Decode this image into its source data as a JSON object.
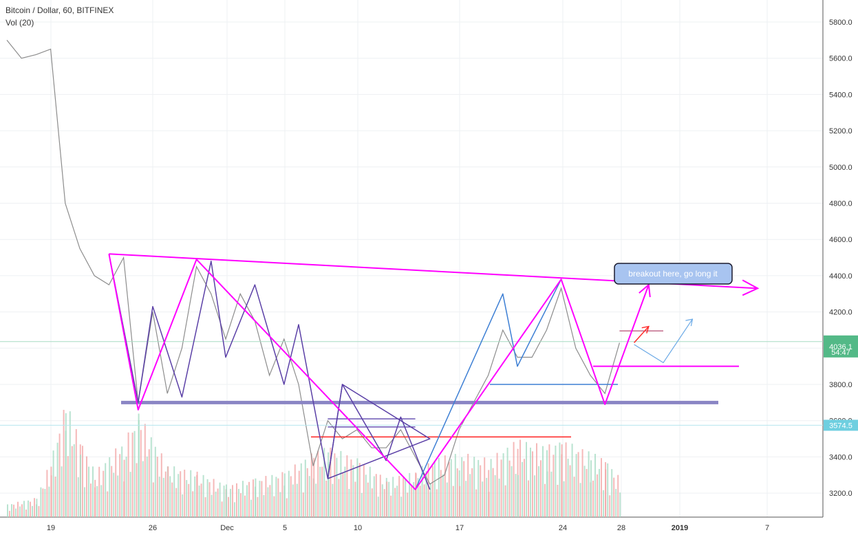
{
  "header": {
    "title": "Bitcoin / Dollar, 60, BITFINEX",
    "indicator": "Vol (20)"
  },
  "annotation": {
    "text": "breakout here, go long it"
  },
  "price_badges": {
    "current_price": "4036.1",
    "countdown": "54:47",
    "secondary_price": "3574.5"
  },
  "colors": {
    "pattern_pink": "#ff00ff",
    "support_purple": "#8a85c4",
    "pattern_blue": "#3d7fd4",
    "pattern_violet": "#5a3fa6",
    "resistance_red": "#ff1f1f",
    "arrow_red": "#ff2a2a",
    "arrow_lightblue": "#6aa9e6",
    "current_price_badge": "#53b987",
    "secondary_badge": "#6fcfe0",
    "annotation_fill": "#a8c4f0"
  },
  "chart_data": {
    "type": "line",
    "symbol": "BTCUSD",
    "exchange": "BITFINEX",
    "interval": "60",
    "x_tick_labels": [
      "19",
      "26",
      "Dec",
      "5",
      "10",
      "17",
      "24",
      "28",
      "2019",
      "7"
    ],
    "y_tick_labels": [
      "5800.0",
      "5600.0",
      "5400.0",
      "5200.0",
      "5000.0",
      "4800.0",
      "4600.0",
      "4400.0",
      "4200.0",
      "4000.0",
      "3800.0",
      "3600.0",
      "3400.0",
      "3200.0"
    ],
    "ylim": [
      3080,
      5880
    ],
    "grid": true,
    "price_series": {
      "x": [
        "2018-11-16",
        "2018-11-17",
        "2018-11-18",
        "2018-11-19",
        "2018-11-20",
        "2018-11-21",
        "2018-11-22",
        "2018-11-23",
        "2018-11-24",
        "2018-11-25",
        "2018-11-26",
        "2018-11-27",
        "2018-11-28",
        "2018-11-29",
        "2018-11-30",
        "2018-12-01",
        "2018-12-02",
        "2018-12-03",
        "2018-12-04",
        "2018-12-05",
        "2018-12-06",
        "2018-12-07",
        "2018-12-08",
        "2018-12-09",
        "2018-12-10",
        "2018-12-11",
        "2018-12-12",
        "2018-12-13",
        "2018-12-14",
        "2018-12-15",
        "2018-12-16",
        "2018-12-17",
        "2018-12-18",
        "2018-12-19",
        "2018-12-20",
        "2018-12-21",
        "2018-12-22",
        "2018-12-23",
        "2018-12-24",
        "2018-12-25",
        "2018-12-26",
        "2018-12-27",
        "2018-12-28"
      ],
      "values": [
        5700,
        5600,
        5620,
        5650,
        4800,
        4550,
        4400,
        4350,
        4500,
        3700,
        4200,
        3750,
        4000,
        4450,
        4300,
        4050,
        4300,
        4150,
        3850,
        4050,
        3800,
        3350,
        3600,
        3500,
        3550,
        3450,
        3450,
        3550,
        3400,
        3250,
        3300,
        3550,
        3700,
        3850,
        4100,
        3950,
        3950,
        4100,
        4330,
        4000,
        3850,
        3750,
        4030
      ]
    },
    "volume_series": {
      "name": "Vol (20)",
      "x": [
        "2018-11-16",
        "2018-11-18",
        "2018-11-19",
        "2018-11-20",
        "2018-11-21",
        "2018-11-22",
        "2018-11-24",
        "2018-11-25",
        "2018-11-27",
        "2018-11-29",
        "2018-12-01",
        "2018-12-03",
        "2018-12-05",
        "2018-12-07",
        "2018-12-08",
        "2018-12-10",
        "2018-12-12",
        "2018-12-14",
        "2018-12-15",
        "2018-12-17",
        "2018-12-19",
        "2018-12-21",
        "2018-12-23",
        "2018-12-24",
        "2018-12-26",
        "2018-12-27",
        "2018-12-28"
      ],
      "values": [
        0.1,
        0.15,
        0.45,
        0.9,
        0.6,
        0.35,
        0.6,
        0.8,
        0.4,
        0.35,
        0.25,
        0.3,
        0.35,
        0.5,
        0.55,
        0.45,
        0.3,
        0.35,
        0.45,
        0.5,
        0.45,
        0.6,
        0.55,
        0.6,
        0.5,
        0.45,
        0.3
      ]
    },
    "drawings": {
      "support_level": 3700,
      "red_resistance_level": 3510,
      "secondary_level": 3574.5,
      "current_price_level": 4036.1,
      "pink_neckline_level": 3900,
      "blue_neckline_level": 3800,
      "pink_triangle_top_left": [
        "2018-11-23",
        4520
      ],
      "pink_triangle_top_right": [
        "2019-01-06",
        4330
      ],
      "pink_zigzag": [
        [
          "2018-11-23",
          4520
        ],
        [
          "2018-11-25",
          3660
        ],
        [
          "2018-11-29",
          4490
        ],
        [
          "2018-12-14",
          3220
        ],
        [
          "2018-12-24",
          4380
        ],
        [
          "2018-12-27",
          3690
        ],
        [
          "2018-12-30",
          4350
        ]
      ],
      "blue_zigzag": [
        [
          "2018-12-14",
          3220
        ],
        [
          "2018-12-20",
          4300
        ],
        [
          "2018-12-21",
          3900
        ],
        [
          "2018-12-24",
          4380
        ]
      ],
      "violet_zigzag": [
        [
          "2018-11-23",
          4520
        ],
        [
          "2018-11-25",
          3700
        ],
        [
          "2018-11-26",
          4230
        ],
        [
          "2018-11-28",
          3730
        ],
        [
          "2018-11-30",
          4480
        ],
        [
          "2018-12-01",
          3950
        ],
        [
          "2018-12-03",
          4350
        ],
        [
          "2018-12-05",
          3800
        ],
        [
          "2018-12-06",
          4130
        ],
        [
          "2018-12-08",
          3280
        ],
        [
          "2018-12-09",
          3800
        ],
        [
          "2018-12-12",
          3380
        ],
        [
          "2018-12-13",
          3620
        ],
        [
          "2018-12-15",
          3220
        ]
      ],
      "violet_triangle": [
        [
          "2018-12-08",
          3280
        ],
        [
          "2018-12-09",
          3800
        ],
        [
          "2018-12-15",
          3500
        ]
      ],
      "red_arrow": [
        [
          "2018-12-29",
          4030
        ],
        [
          "2018-12-30",
          4120
        ]
      ],
      "lightblue_path": [
        [
          "2018-12-29",
          4020
        ],
        [
          "2018-12-31",
          3920
        ],
        [
          "2019-01-02",
          4160
        ]
      ],
      "short_lines": [
        {
          "x1": "2018-12-28",
          "x2": "2018-12-31",
          "y": 4095,
          "color": "#c26a8a"
        },
        {
          "x1": "2018-12-08",
          "x2": "2018-12-14",
          "y": 3610,
          "color": "#6a55b5"
        },
        {
          "x1": "2018-12-08",
          "x2": "2018-12-14",
          "y": 3565,
          "color": "#6a55b5"
        }
      ]
    }
  }
}
